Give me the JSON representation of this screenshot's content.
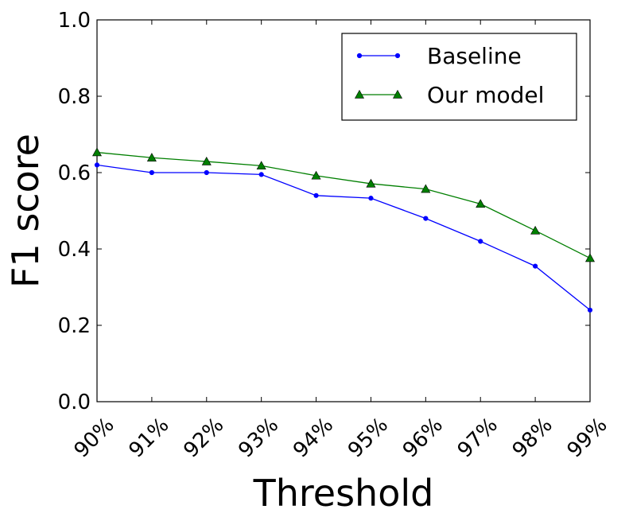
{
  "chart_data": {
    "type": "line",
    "categories": [
      "90%",
      "91%",
      "92%",
      "93%",
      "94%",
      "95%",
      "96%",
      "97%",
      "98%",
      "99%"
    ],
    "series": [
      {
        "name": "Baseline",
        "color": "#0000ff",
        "marker": "circle",
        "values": [
          0.62,
          0.6,
          0.6,
          0.595,
          0.54,
          0.533,
          0.48,
          0.42,
          0.355,
          0.24
        ]
      },
      {
        "name": "Our model",
        "color": "#007f00",
        "marker": "triangle",
        "values": [
          0.653,
          0.639,
          0.629,
          0.618,
          0.592,
          0.571,
          0.557,
          0.518,
          0.448,
          0.376
        ]
      }
    ],
    "xlabel": "Threshold",
    "ylabel": "F1 score",
    "ylim": [
      0,
      1.0
    ],
    "yticks": [
      "0.0",
      "0.2",
      "0.4",
      "0.6",
      "0.8",
      "1.0"
    ],
    "grid": false,
    "legend_position": "top-right"
  }
}
